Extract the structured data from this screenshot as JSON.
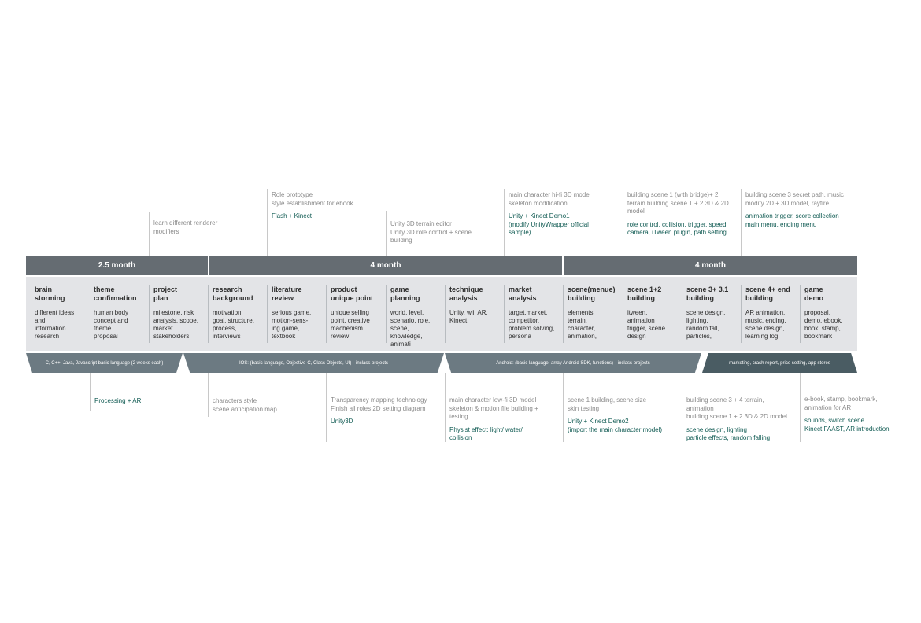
{
  "durations": [
    "2.5 month",
    "4 month",
    "4 month"
  ],
  "phases": [
    {
      "title": "brain\nstorming",
      "desc": "different ideas\nand\ninformation\nresearch"
    },
    {
      "title": "theme\nconfirmation",
      "desc": "human body\nconcept and\ntheme\nproposal"
    },
    {
      "title": "project\nplan",
      "desc": "milestone, risk\nanalysis, scope,\nmarket\nstakeholders"
    },
    {
      "title": "research\nbackground",
      "desc": "motivation,\ngoal, structure,\nprocess,\ninterviews"
    },
    {
      "title": "literature\nreview",
      "desc": "serious game,\nmotion-sens-\ning game,\ntextbook"
    },
    {
      "title": "product\nunique point",
      "desc": "unique selling\npoint, creative\nmachenism\nreview"
    },
    {
      "title": "game\nplanning",
      "desc": "world, level,\nscenario, role,\nscene,\nknowledge,\nanimati"
    },
    {
      "title": "technique\nanalysis",
      "desc": "Unity, wii, AR,\nKinect,"
    },
    {
      "title": "market\nanalysis",
      "desc": "target,market,\ncompetitor,\nproblem solving,\npersona"
    },
    {
      "title": "scene(menue)\nbuilding",
      "desc": "elements,\nterrain,\ncharacter,\nanimation,"
    },
    {
      "title": "scene 1+2\nbuilding",
      "desc": "itween,\nanimation\ntrigger, scene\ndesign"
    },
    {
      "title": "scene 3+ 3.1\nbuilding",
      "desc": "scene design,\nlighting,\nrandom fall,\nparticles,"
    },
    {
      "title": "scene 4+ end\nbuilding",
      "desc": "AR animation,\nmusic, ending,\nscene design,\nlearning log"
    },
    {
      "title": "game\ndemo",
      "desc": "proposal,\ndemo, ebook,\nbook, stamp,\nbookmark"
    }
  ],
  "tracks": [
    "C, C++, Java, Javascript basic language (2 weeks each)",
    "IOS: (basic language, Objective-C, Class Objects, UI)-- inclass projects",
    "Android: (basic language, array Android SDK, functions)-- inclass projects",
    "marketing, crash report, price setting, app stores"
  ],
  "top_notes": [
    {
      "note": "learn different renderer\nmodifiers",
      "tech": ""
    },
    {
      "note": "Role prototype\nstyle establishment for ebook",
      "tech": "Flash + Kinect"
    },
    {
      "note": "Unity 3D terrain editor\nUnity 3D role control + scene\nbuilding",
      "tech": ""
    },
    {
      "note": "main character hi-fi 3D model\nskeleton modification",
      "tech": "Unity + Kinect Demo1\n(modify UnityWrapper official\nsample)"
    },
    {
      "note": "building scene 1 (with bridge)+ 2\nterrain building scene 1 + 2 3D & 2D\nmodel",
      "tech": "role control, collision, trigger, speed\ncamera, iTween plugin, path setting"
    },
    {
      "note": "building scene 3 secret path, music\nmodify 2D + 3D model, rayfire",
      "tech": "animation trigger, score collection\nmain menu, ending menu"
    }
  ],
  "bottom_notes": [
    {
      "note": "",
      "tech": "Processing + AR"
    },
    {
      "note": "characters style\nscene anticipation map",
      "tech": ""
    },
    {
      "note": "Transparency mapping technology\nFinish all roles 2D setting diagram",
      "tech": "Unity3D"
    },
    {
      "note": "main character low-fi 3D model\nskeleton & motion file building +\ntesting",
      "tech": "Physist effect: light/ water/\ncollision"
    },
    {
      "note": "scene 1 building, scene size\nskin testing",
      "tech": "Unity + Kinect Demo2\n(import the main character model)"
    },
    {
      "note": "building scene 3 + 4 terrain,\nanimation\nbuilding scene 1 + 2 3D & 2D model",
      "tech": "scene design, lighting\nparticle effects, random falling"
    },
    {
      "note": "e-book, stamp, bookmark,\nanimation for AR",
      "tech": "sounds, switch scene\nKinect FAAST, AR introduction"
    }
  ],
  "colors": {
    "duration_bar": "#656c72",
    "band": "#e3e4e7",
    "track": "#6c7a82",
    "track_dark": "#4a5c63",
    "tech_text": "#0f5a52",
    "note_text": "#8a8a8a"
  }
}
